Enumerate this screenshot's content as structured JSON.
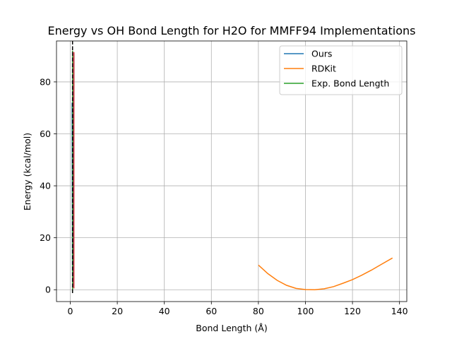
{
  "chart_data": {
    "type": "line",
    "title": "Energy vs OH Bond Length for H2O for MMFF94 Implementations",
    "xlabel": "Bond Length (Å)",
    "ylabel": "Energy (kcal/mol)",
    "xlim": [
      -5.85,
      143.1
    ],
    "ylim": [
      -4.56,
      95.75
    ],
    "xticks": [
      0,
      20,
      40,
      60,
      80,
      100,
      120,
      140
    ],
    "yticks": [
      0,
      20,
      40,
      60,
      80
    ],
    "grid": true,
    "legend_position": "top-right",
    "series": [
      {
        "name": "Ours",
        "color": "#1f77b4",
        "style": "solid",
        "points": [
          [
            0.8,
            72.0
          ],
          [
            0.85,
            45.0
          ],
          [
            0.9,
            25.0
          ],
          [
            0.95,
            10.0
          ],
          [
            1.0,
            3.0
          ],
          [
            1.05,
            1.0
          ],
          [
            1.1,
            5.0
          ],
          [
            1.2,
            20.0
          ],
          [
            1.3,
            40.0
          ],
          [
            1.4,
            60.0
          ],
          [
            1.5,
            80.0
          ],
          [
            1.55,
            91.0
          ]
        ]
      },
      {
        "name": "RDKit",
        "color": "#ff7f0e",
        "style": "solid",
        "points": [
          [
            80,
            9.5
          ],
          [
            84,
            6.2
          ],
          [
            88,
            3.6
          ],
          [
            92,
            1.7
          ],
          [
            96,
            0.5
          ],
          [
            100,
            0.05
          ],
          [
            104,
            0.0
          ],
          [
            108,
            0.35
          ],
          [
            112,
            1.2
          ],
          [
            116,
            2.5
          ],
          [
            120,
            3.9
          ],
          [
            124,
            5.6
          ],
          [
            128,
            7.5
          ],
          [
            132,
            9.6
          ],
          [
            137,
            12.2
          ]
        ]
      },
      {
        "name": "Exp. Bond Length",
        "color": "#2ca02c",
        "style": "solid",
        "points": [
          [
            0.958,
            -1.0
          ],
          [
            0.958,
            92.0
          ]
        ]
      },
      {
        "color": "#d62728",
        "style": "solid",
        "points": [
          [
            1.55,
            0.5
          ],
          [
            1.55,
            91.5
          ]
        ]
      },
      {
        "color": "#000000",
        "style": "dashed",
        "points": [
          [
            0.96,
            -1.3
          ],
          [
            0.96,
            95.7
          ]
        ]
      }
    ]
  }
}
